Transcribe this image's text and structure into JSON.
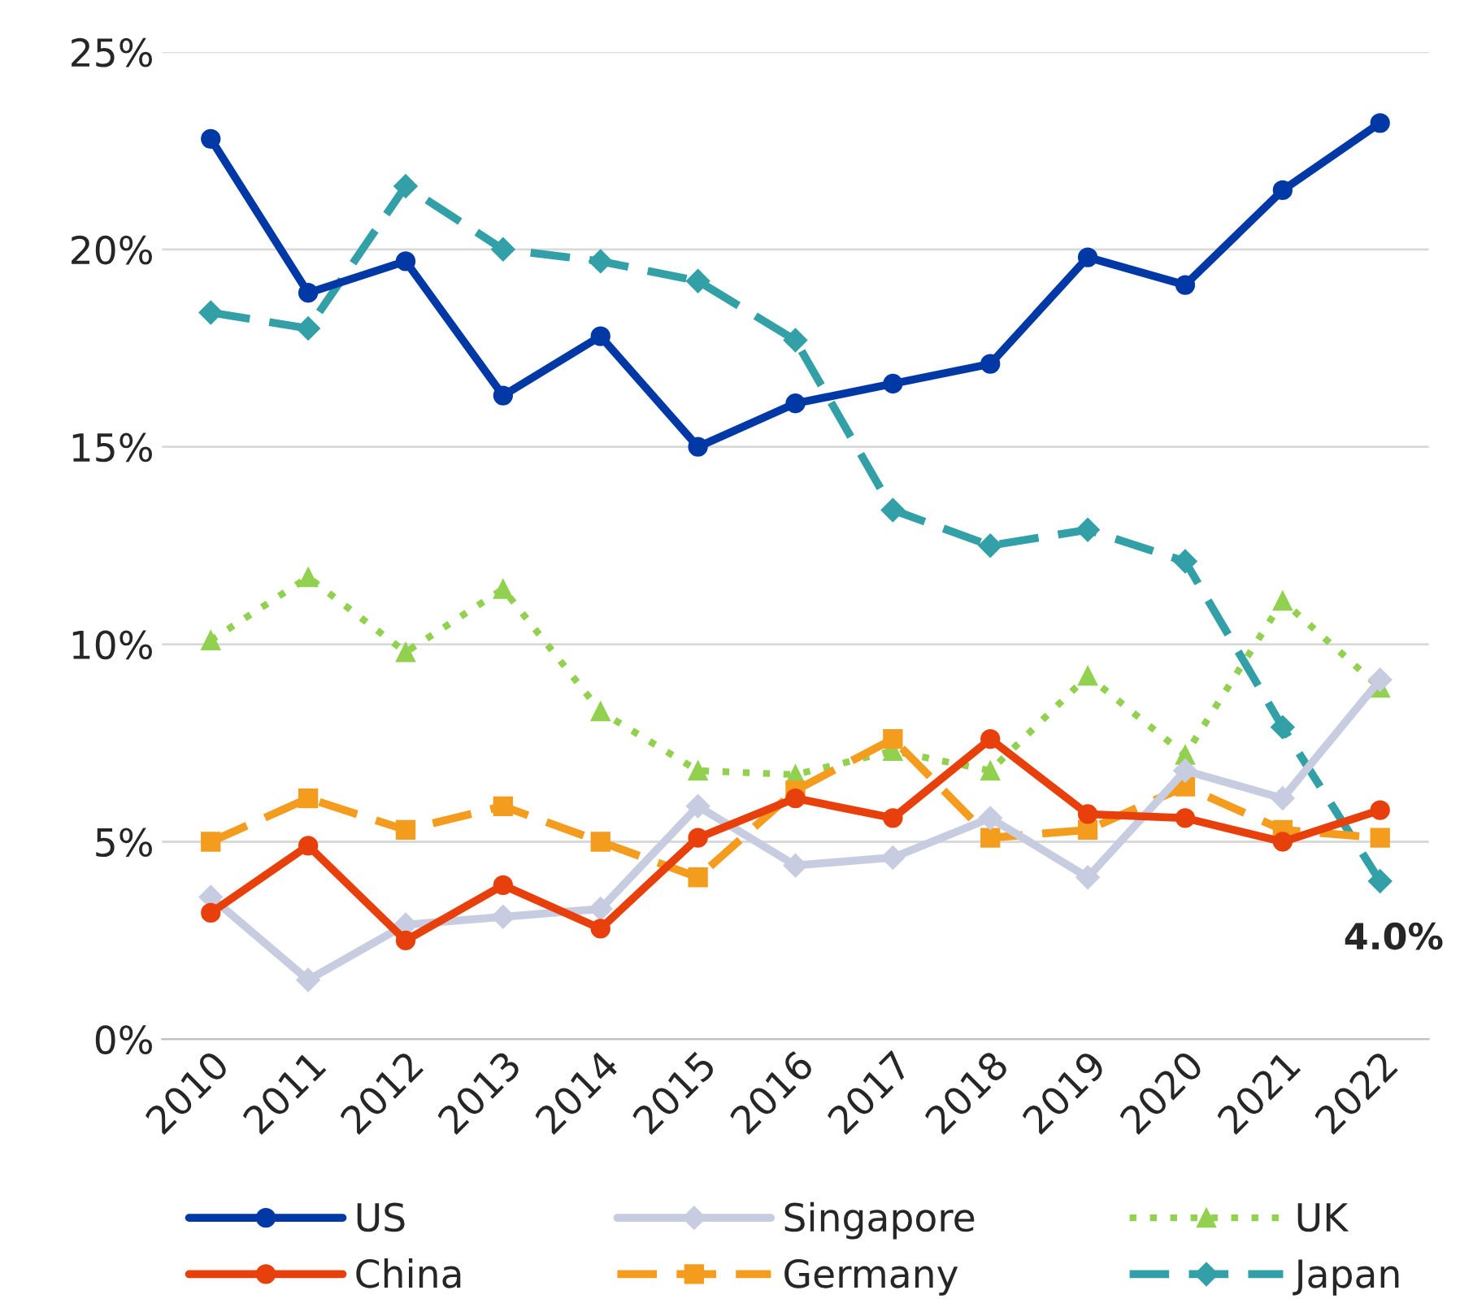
{
  "chart_data": {
    "type": "line",
    "categories": [
      "2010",
      "2011",
      "2012",
      "2013",
      "2014",
      "2015",
      "2016",
      "2017",
      "2018",
      "2019",
      "2020",
      "2021",
      "2022"
    ],
    "series": [
      {
        "name": "US",
        "color": "#0039a6",
        "marker": "circle",
        "line_style": "solid",
        "values": [
          22.8,
          18.9,
          19.7,
          16.3,
          17.8,
          15.0,
          16.1,
          16.6,
          17.1,
          19.8,
          19.1,
          21.5,
          23.2
        ]
      },
      {
        "name": "China",
        "color": "#e8400c",
        "marker": "circle",
        "line_style": "solid",
        "values": [
          3.2,
          4.9,
          2.5,
          3.9,
          2.8,
          5.1,
          6.1,
          5.6,
          7.6,
          5.7,
          5.6,
          5.0,
          5.8
        ]
      },
      {
        "name": "Singapore",
        "color": "#c8cce0",
        "marker": "diamond",
        "line_style": "solid",
        "values": [
          3.6,
          1.5,
          2.9,
          3.1,
          3.3,
          5.9,
          4.4,
          4.6,
          5.6,
          4.1,
          6.8,
          6.1,
          9.1
        ]
      },
      {
        "name": "Germany",
        "color": "#f39c1e",
        "marker": "square",
        "line_style": "dashed",
        "values": [
          5.0,
          6.1,
          5.3,
          5.9,
          5.0,
          4.1,
          6.3,
          7.6,
          5.1,
          5.3,
          6.4,
          5.3,
          5.1
        ]
      },
      {
        "name": "UK",
        "color": "#92d050",
        "marker": "triangle",
        "line_style": "dotted",
        "values": [
          10.1,
          11.7,
          9.8,
          11.4,
          8.3,
          6.8,
          6.7,
          7.3,
          6.8,
          9.2,
          7.2,
          11.1,
          8.9
        ]
      },
      {
        "name": "Japan",
        "color": "#33a0a8",
        "marker": "diamond",
        "line_style": "dashed",
        "values": [
          18.4,
          18.0,
          21.6,
          20.0,
          19.7,
          19.2,
          17.7,
          13.4,
          12.5,
          12.9,
          12.1,
          7.9,
          4.0
        ]
      }
    ],
    "ylim": [
      0,
      25
    ],
    "yticks": [
      {
        "value": 0,
        "label": "0%"
      },
      {
        "value": 5,
        "label": "5%"
      },
      {
        "value": 10,
        "label": "10%"
      },
      {
        "value": 15,
        "label": "15%"
      },
      {
        "value": 20,
        "label": "20%"
      },
      {
        "value": 25,
        "label": "25%"
      }
    ],
    "grid": "y",
    "legend": "bottom",
    "annotations": [
      {
        "text": "4.0%",
        "x": "2022",
        "y": 4.0
      }
    ]
  }
}
